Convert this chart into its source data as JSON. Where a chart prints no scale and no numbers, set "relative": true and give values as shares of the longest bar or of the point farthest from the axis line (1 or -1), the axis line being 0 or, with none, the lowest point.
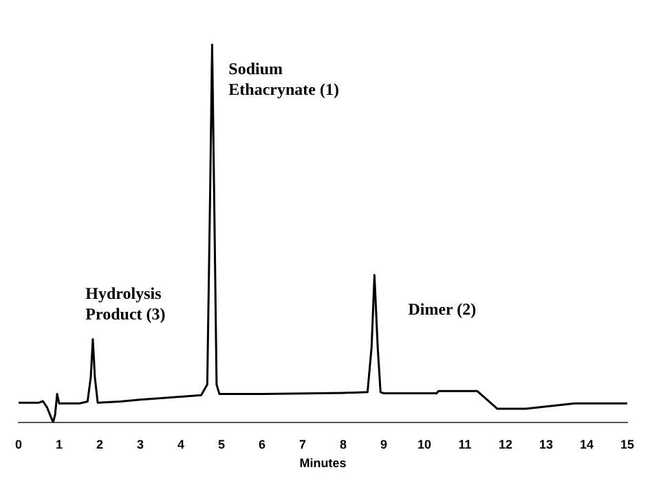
{
  "chart_data": {
    "type": "line",
    "relative": true,
    "xlabel": "Minutes",
    "xlim": [
      0,
      15
    ],
    "xticks": [
      0,
      1,
      2,
      3,
      4,
      5,
      6,
      7,
      8,
      9,
      10,
      11,
      12,
      13,
      14,
      15
    ],
    "tick_labels": "x",
    "grid": false,
    "legend": false,
    "marker": "none",
    "line_style": "solid",
    "series": [
      {
        "color": "#000000",
        "x": [
          0,
          0.5,
          0.6,
          0.7,
          0.85,
          0.9,
          0.95,
          1.0,
          1.5,
          1.7,
          1.78,
          1.83,
          1.88,
          1.95,
          2.5,
          3,
          4,
          4.5,
          4.65,
          4.72,
          4.77,
          4.82,
          4.88,
          4.95,
          6,
          8,
          8.6,
          8.7,
          8.77,
          8.85,
          8.92,
          9,
          10.3,
          10.35,
          11.3,
          11.8,
          12.5,
          13,
          13.7,
          15
        ],
        "values": [
          0.052,
          0.052,
          0.056,
          0.04,
          0.0,
          0.02,
          0.075,
          0.05,
          0.05,
          0.055,
          0.12,
          0.22,
          0.12,
          0.052,
          0.055,
          0.06,
          0.068,
          0.072,
          0.1,
          0.6,
          1.0,
          0.6,
          0.1,
          0.075,
          0.075,
          0.078,
          0.08,
          0.2,
          0.39,
          0.2,
          0.08,
          0.077,
          0.077,
          0.083,
          0.083,
          0.036,
          0.036,
          0.042,
          0.05,
          0.05
        ]
      }
    ],
    "annotations": [
      "Sodium\nEthacrynate (1)",
      "Hydrolysis\nProduct (3)",
      "Dimer (2)"
    ]
  }
}
